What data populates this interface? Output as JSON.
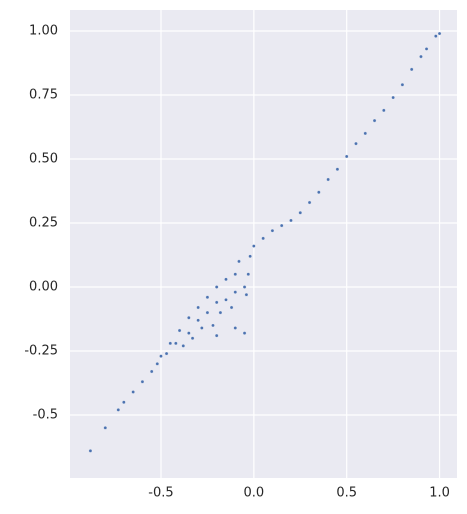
{
  "chart_data": {
    "type": "scatter",
    "color": "#4c72b0",
    "grid": true,
    "xlim": [
      -0.99,
      1.094
    ],
    "ylim": [
      -0.746,
      1.082
    ],
    "xticks": [
      -0.5,
      {
        "value": 0,
        "label": "0.0"
      },
      0.5,
      {
        "value": 1,
        "label": "1.0"
      }
    ],
    "yticks": [
      -0.5,
      -0.25,
      {
        "value": 0,
        "label": "0.00"
      },
      0.25,
      {
        "value": 0.5,
        "label": "0.50"
      },
      0.75,
      {
        "value": 1,
        "label": "1.00"
      }
    ],
    "x": [
      1.0,
      0.98,
      0.93,
      0.9,
      0.85,
      0.8,
      0.75,
      0.7,
      0.65,
      0.6,
      0.55,
      0.5,
      0.45,
      0.4,
      0.35,
      0.3,
      0.25,
      0.2,
      0.15,
      0.1,
      0.05,
      0.0,
      -0.02,
      -0.03,
      -0.05,
      -0.04,
      -0.08,
      -0.1,
      -0.1,
      -0.12,
      -0.15,
      -0.15,
      -0.18,
      -0.2,
      -0.2,
      -0.22,
      -0.25,
      -0.25,
      -0.28,
      -0.3,
      -0.3,
      -0.33,
      -0.35,
      -0.35,
      -0.38,
      -0.4,
      -0.42,
      -0.45,
      -0.47,
      -0.5,
      -0.52,
      -0.55,
      -0.6,
      -0.65,
      -0.7,
      -0.73,
      -0.8,
      -0.88,
      -0.2,
      -0.1,
      -0.05
    ],
    "values": [
      0.99,
      0.98,
      0.93,
      0.9,
      0.85,
      0.79,
      0.74,
      0.69,
      0.65,
      0.6,
      0.56,
      0.51,
      0.46,
      0.42,
      0.37,
      0.33,
      0.29,
      0.26,
      0.24,
      0.22,
      0.19,
      0.16,
      0.12,
      0.05,
      0.0,
      -0.03,
      0.1,
      0.05,
      -0.02,
      -0.08,
      0.03,
      -0.05,
      -0.1,
      0.0,
      -0.06,
      -0.15,
      -0.04,
      -0.1,
      -0.16,
      -0.08,
      -0.13,
      -0.2,
      -0.12,
      -0.18,
      -0.23,
      -0.17,
      -0.22,
      -0.22,
      -0.26,
      -0.27,
      -0.3,
      -0.33,
      -0.37,
      -0.41,
      -0.45,
      -0.48,
      -0.55,
      -0.64,
      -0.19,
      -0.16,
      -0.18
    ]
  }
}
